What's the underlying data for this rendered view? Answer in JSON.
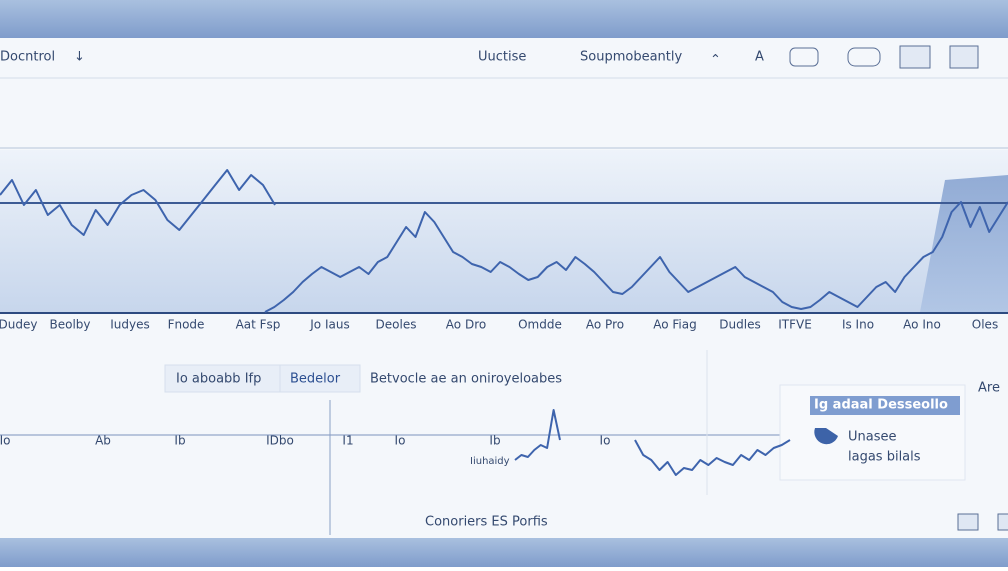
{
  "toolbar": {
    "left": [
      "Docntrol",
      "↓"
    ],
    "right": [
      "Uuctise",
      "Soupmobeantly",
      "⌃",
      "A"
    ]
  },
  "top_panel": {
    "x_labels": [
      "Dudey",
      "Beolby",
      "Iudyes",
      "Fnode",
      "Aat Fsp",
      "Jo Iaus",
      "Deoles",
      "Ao Dro",
      "Omdde",
      "Ao Pro",
      "Ao Fiag",
      "Dudles",
      "ITFVE",
      "Is Ino",
      "Ao Ino",
      "Oles"
    ],
    "trace_a": [
      117,
      132,
      107,
      122,
      97,
      107,
      87,
      77,
      102,
      87,
      107,
      117,
      122,
      112,
      92,
      82,
      97,
      112,
      127,
      142,
      122,
      137,
      127,
      107
    ],
    "trace_b": [
      0,
      5,
      12,
      20,
      30,
      38,
      45,
      40,
      35,
      40,
      45,
      38,
      50,
      55,
      70,
      85,
      75,
      100,
      90,
      75,
      60,
      55,
      48,
      45,
      40,
      50,
      45,
      38,
      32,
      35,
      45,
      50,
      42,
      55,
      48,
      40,
      30,
      20,
      18,
      25,
      35,
      45,
      55,
      40,
      30,
      20,
      25,
      30,
      35,
      40,
      45,
      35,
      30,
      25,
      20,
      10,
      5,
      3,
      5,
      12,
      20,
      15,
      10,
      5,
      15,
      25,
      30,
      20,
      35,
      45,
      55,
      60,
      75,
      100,
      110,
      85,
      105,
      80,
      95,
      110
    ]
  },
  "lower_panel": {
    "filter": [
      "Io aboabb Ifp",
      "Bedelor"
    ],
    "caption": "Betvocle ae an oniroyeloabes",
    "axis_labels": [
      "Io",
      "Ab",
      "Ib",
      "IDbo",
      "I1",
      "Io",
      "Ib",
      "Io"
    ],
    "sub_label": "Iiuhaidy",
    "trace_c": [
      0,
      5,
      3,
      10,
      15,
      12,
      50,
      20
    ],
    "trace_d": [
      0,
      15,
      20,
      30,
      22,
      35,
      28,
      30,
      20,
      25,
      18,
      22,
      25,
      15,
      20,
      10,
      15,
      8,
      5,
      0
    ],
    "footer": "Conoriers ES Porfis",
    "side_label": "Are"
  },
  "legend": {
    "title": "Ig adaal Desseollo",
    "items": [
      "Unasee",
      "lagas bilals"
    ]
  }
}
